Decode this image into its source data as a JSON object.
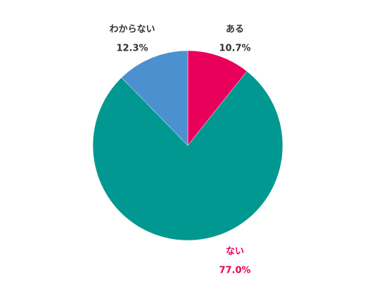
{
  "chart_data": {
    "type": "pie",
    "categories": [
      "ある",
      "ない",
      "わからない"
    ],
    "values": [
      10.7,
      77.0,
      12.3
    ],
    "value_labels": [
      "10.7%",
      "77.0%",
      "12.3%"
    ],
    "colors": [
      "#e8005a",
      "#009890",
      "#4d90d0"
    ],
    "label_colors": [
      "#333333",
      "#e8005a",
      "#333333"
    ]
  }
}
